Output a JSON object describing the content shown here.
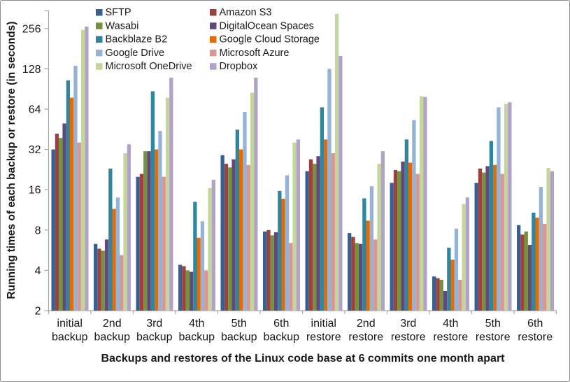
{
  "colors": {
    "axis": "#A6A6A6",
    "text": "#1A1A1A",
    "background": "#FFFFFF",
    "border": "#8C8C8C"
  },
  "chart_data": {
    "type": "bar",
    "title": "",
    "xlabel": "Backups and restores of the Linux code base at 6 commits one month apart",
    "ylabel": "Running times of each backup or restore (in seconds)",
    "y_scale": "log2",
    "y_ticks": [
      2,
      4,
      8,
      16,
      32,
      64,
      128,
      256
    ],
    "ylim": [
      2,
      350
    ],
    "grid": false,
    "legend_position": "top-left, two columns",
    "categories": [
      "initial backup",
      "2nd backup",
      "3rd backup",
      "4th backup",
      "5th backup",
      "6th backup",
      "initial restore",
      "2nd restore",
      "3rd restore",
      "4th restore",
      "5th restore",
      "6th restore"
    ],
    "series": [
      {
        "name": "SFTP",
        "color": "#376092",
        "values": [
          32,
          6.3,
          20,
          4.4,
          29,
          7.8,
          22,
          7.6,
          18,
          3.6,
          18,
          8.7
        ]
      },
      {
        "name": "Amazon S3",
        "color": "#9E413E",
        "values": [
          42,
          5.8,
          21,
          4.3,
          25,
          8,
          27,
          7.1,
          22.5,
          3.5,
          23,
          7.4
        ]
      },
      {
        "name": "Wasabi",
        "color": "#76923C",
        "values": [
          39,
          5.6,
          31,
          4,
          23.5,
          7.3,
          25,
          6.4,
          22,
          3.4,
          21.5,
          7.8
        ]
      },
      {
        "name": "DigitalOcean Spaces",
        "color": "#604A7B",
        "values": [
          50,
          6.8,
          31,
          3.9,
          27,
          7.7,
          28.5,
          6.3,
          26,
          2.8,
          24,
          6.2
        ]
      },
      {
        "name": "Backblaze B2",
        "color": "#31859C",
        "values": [
          105,
          23,
          87,
          13,
          45,
          15.7,
          66,
          13.8,
          38,
          5.9,
          37,
          10.8
        ]
      },
      {
        "name": "Google Cloud Storage",
        "color": "#E36C0A",
        "values": [
          78,
          11.5,
          32,
          7,
          32,
          13.7,
          38,
          9.4,
          25.5,
          4.8,
          24.5,
          9.9
        ]
      },
      {
        "name": "Google Drive",
        "color": "#95B3D7",
        "values": [
          135,
          14,
          44,
          9.3,
          61,
          20.5,
          128,
          17,
          53,
          8.2,
          66,
          16.8
        ]
      },
      {
        "name": "Microsoft Azure",
        "color": "#D99694",
        "values": [
          36,
          5.2,
          20,
          4,
          24.5,
          6.4,
          30,
          6.8,
          21,
          3.4,
          21,
          8.9
        ]
      },
      {
        "name": "Microsoft OneDrive",
        "color": "#C3D69B",
        "values": [
          250,
          30,
          78,
          16.5,
          85,
          36,
          330,
          25,
          80,
          12.5,
          70,
          23.3
        ]
      },
      {
        "name": "Dropbox",
        "color": "#B3A2C7",
        "values": [
          265,
          35,
          110,
          19,
          110,
          38,
          160,
          31,
          79,
          14,
          72,
          22
        ]
      }
    ]
  }
}
